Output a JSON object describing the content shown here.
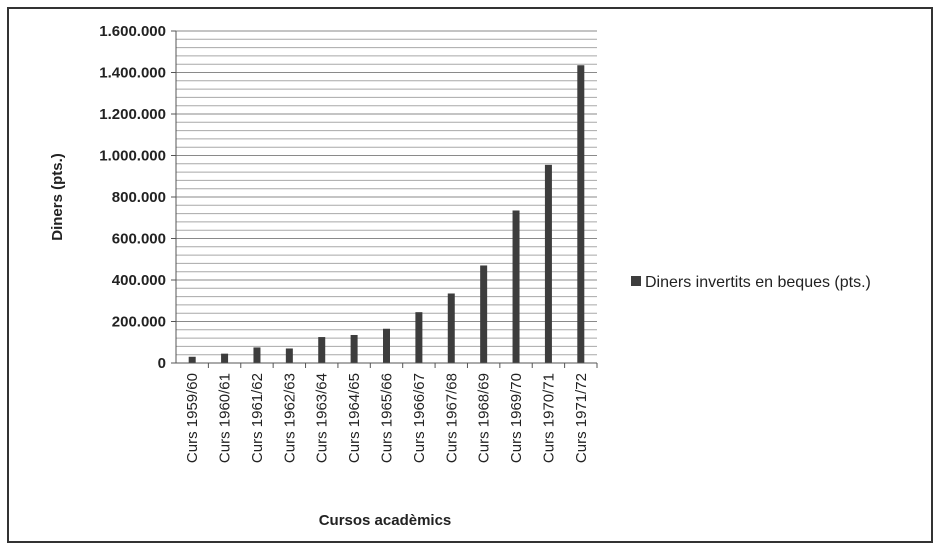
{
  "chart_data": {
    "type": "bar",
    "title": "",
    "xlabel": "Cursos acadèmics",
    "ylabel": "Diners (pts.)",
    "ylim": [
      0,
      1600000
    ],
    "major_ticks": [
      0,
      200000,
      400000,
      600000,
      800000,
      1000000,
      1200000,
      1400000,
      1600000
    ],
    "tick_labels": [
      "0",
      "200.000",
      "400.000",
      "600.000",
      "800.000",
      "1.000.000",
      "1.200.000",
      "1.400.000",
      "1.600.000"
    ],
    "minor_grid_step": 40000,
    "grid": true,
    "legend_position": "right",
    "categories": [
      "Curs 1959/60",
      "Curs 1960/61",
      "Curs 1961/62",
      "Curs 1962/63",
      "Curs 1963/64",
      "Curs 1964/65",
      "Curs 1965/66",
      "Curs 1966/67",
      "Curs 1967/68",
      "Curs 1968/69",
      "Curs 1969/70",
      "Curs 1970/71",
      "Curs 1971/72"
    ],
    "series": [
      {
        "name": "Diners invertits en beques (pts.)",
        "color": "#3d3d3d",
        "values": [
          30000,
          45000,
          75000,
          70000,
          125000,
          135000,
          165000,
          245000,
          335000,
          470000,
          735000,
          955000,
          1435000
        ]
      }
    ]
  }
}
